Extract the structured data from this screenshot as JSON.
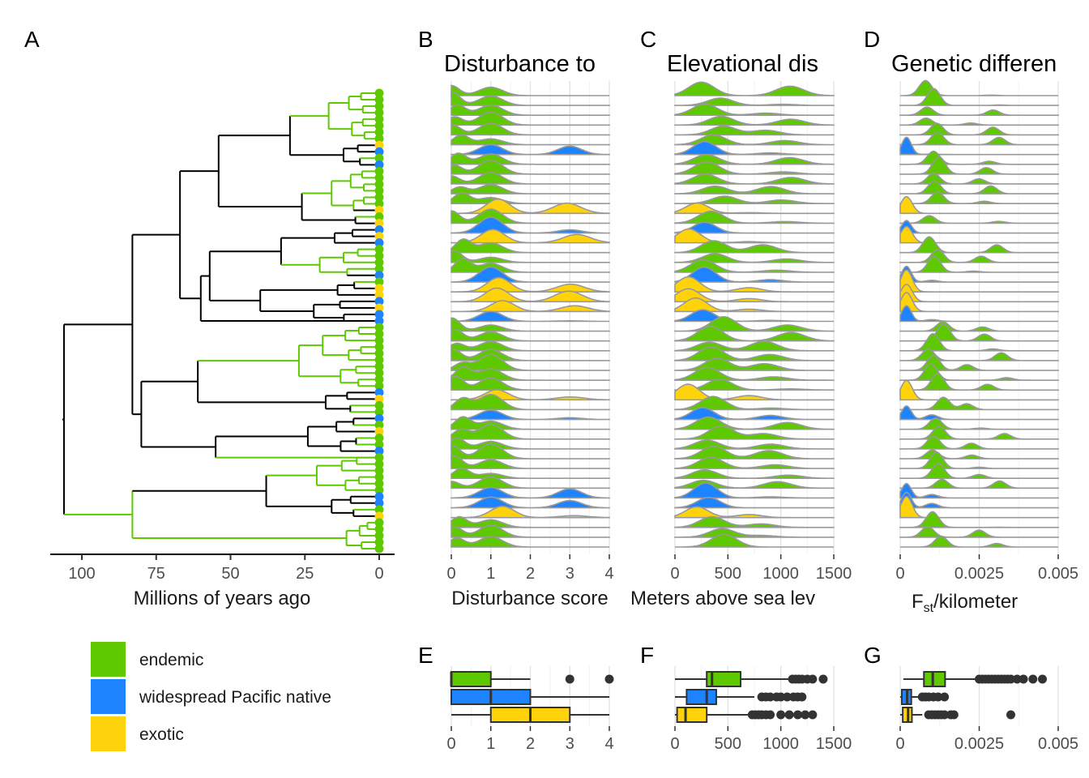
{
  "colors": {
    "endemic": "#5ec900",
    "widespread": "#1e83ff",
    "exotic": "#ffd30b",
    "tree": "#000000",
    "ridge_line": "#999999",
    "grid": "#e6e6e6"
  },
  "legend": {
    "items": [
      {
        "key": "endemic",
        "label": "endemic",
        "color": "#5ec900"
      },
      {
        "key": "widespread",
        "label": "widespread Pacific native",
        "color": "#1e83ff"
      },
      {
        "key": "exotic",
        "label": "exotic",
        "color": "#ffd30b"
      }
    ]
  },
  "panels": {
    "A": {
      "letter": "A",
      "xlabel": "Millions of years ago",
      "ticks": [
        "100",
        "75",
        "50",
        "25",
        "0"
      ]
    },
    "B": {
      "letter": "B",
      "title": "Disturbance to",
      "xlabel": "Disturbance score",
      "ticks": [
        "0",
        "1",
        "2",
        "3",
        "4"
      ]
    },
    "C": {
      "letter": "C",
      "title": "Elevational dis",
      "xlabel": "Meters above sea lev",
      "ticks": [
        "0",
        "500",
        "1000",
        "1500"
      ]
    },
    "D": {
      "letter": "D",
      "title": "Genetic differen",
      "xlabel_main": "F",
      "xlabel_sub": "st",
      "xlabel_rest": "/kilometer",
      "ticks": [
        "0",
        "0.0025",
        "0.005"
      ]
    },
    "E": {
      "letter": "E",
      "ticks": [
        "0",
        "1",
        "2",
        "3",
        "4"
      ]
    },
    "F": {
      "letter": "F",
      "ticks": [
        "0",
        "500",
        "1000",
        "1500"
      ]
    },
    "G": {
      "letter": "G",
      "ticks": [
        "0",
        "0.0025",
        "0.005"
      ]
    }
  },
  "chart_data": [
    {
      "panel": "A",
      "type": "phylogeny",
      "x_axis": {
        "label": "Millions of years ago",
        "reversed": true,
        "range": [
          110,
          -2
        ],
        "ticks": [
          100,
          75,
          50,
          25,
          0
        ]
      },
      "tip_status": [
        "endemic",
        "endemic",
        "endemic",
        "endemic",
        "endemic",
        "endemic",
        "endemic",
        "endemic",
        "exotic",
        "widespread",
        "endemic",
        "widespread",
        "endemic",
        "endemic",
        "endemic",
        "endemic",
        "endemic",
        "endemic",
        "exotic",
        "endemic",
        "exotic",
        "widespread",
        "exotic",
        "widespread",
        "endemic",
        "endemic",
        "endemic",
        "endemic",
        "widespread",
        "endemic",
        "exotic",
        "exotic",
        "widespread",
        "exotic",
        "widespread",
        "widespread",
        "endemic",
        "endemic",
        "endemic",
        "endemic",
        "endemic",
        "endemic",
        "endemic",
        "endemic",
        "endemic",
        "endemic",
        "widespread",
        "exotic",
        "endemic",
        "endemic",
        "widespread",
        "endemic",
        "exotic",
        "endemic",
        "endemic",
        "widespread",
        "endemic",
        "endemic",
        "endemic",
        "endemic",
        "endemic",
        "endemic",
        "widespread",
        "widespread",
        "endemic",
        "exotic",
        "endemic",
        "endemic",
        "endemic",
        "endemic",
        "endemic"
      ]
    },
    {
      "panel": "B",
      "type": "ridgeline",
      "x_axis": {
        "label": "Disturbance score",
        "range": [
          0,
          4
        ],
        "ticks": [
          0,
          1,
          2,
          3,
          4
        ]
      }
    },
    {
      "panel": "C",
      "type": "ridgeline",
      "x_axis": {
        "label": "Meters above sea lev",
        "range": [
          0,
          1500
        ],
        "ticks": [
          0,
          500,
          1000,
          1500
        ]
      }
    },
    {
      "panel": "D",
      "type": "ridgeline",
      "x_axis": {
        "label": "Fst/kilometer",
        "range": [
          0,
          0.005
        ],
        "ticks": [
          0,
          0.0025,
          0.005
        ]
      }
    },
    {
      "panel": "E",
      "type": "boxplot",
      "x_axis": {
        "range": [
          0,
          4
        ],
        "ticks": [
          0,
          1,
          2,
          3,
          4
        ]
      },
      "boxes": [
        {
          "group": "endemic",
          "q1": 0,
          "median": 0,
          "q3": 1,
          "whisker_low": 0,
          "whisker_high": 2,
          "outliers": [
            3,
            4
          ]
        },
        {
          "group": "widespread",
          "q1": 0,
          "median": 1,
          "q3": 2,
          "whisker_low": 0,
          "whisker_high": 4,
          "outliers": []
        },
        {
          "group": "exotic",
          "q1": 1,
          "median": 2,
          "q3": 3,
          "whisker_low": 0,
          "whisker_high": 4,
          "outliers": []
        }
      ]
    },
    {
      "panel": "F",
      "type": "boxplot",
      "x_axis": {
        "range": [
          0,
          1500
        ],
        "ticks": [
          0,
          500,
          1000,
          1500
        ]
      },
      "boxes": [
        {
          "group": "endemic",
          "q1": 300,
          "median": 350,
          "q3": 620,
          "whisker_low": 0,
          "whisker_high": 1080,
          "outliers": [
            1110,
            1140,
            1170,
            1200,
            1250,
            1300,
            1400
          ]
        },
        {
          "group": "widespread",
          "q1": 110,
          "median": 300,
          "q3": 390,
          "whisker_low": 0,
          "whisker_high": 750,
          "outliers": [
            820,
            860,
            900,
            960,
            1000,
            1060,
            1120,
            1160,
            1200
          ]
        },
        {
          "group": "exotic",
          "q1": 20,
          "median": 100,
          "q3": 300,
          "whisker_low": 0,
          "whisker_high": 700,
          "outliers": [
            730,
            760,
            790,
            820,
            860,
            900,
            1000,
            1080,
            1160,
            1230,
            1300
          ]
        }
      ]
    },
    {
      "panel": "G",
      "type": "boxplot",
      "x_axis": {
        "range": [
          0,
          0.005
        ],
        "ticks": [
          0,
          0.0025,
          0.005
        ]
      },
      "boxes": [
        {
          "group": "endemic",
          "q1": 0.00075,
          "median": 0.00103,
          "q3": 0.00142,
          "whisker_low": 0.0001,
          "whisker_high": 0.0024,
          "outliers": [
            0.0025,
            0.0026,
            0.0027,
            0.0028,
            0.0029,
            0.003,
            0.0031,
            0.0032,
            0.0033,
            0.0034,
            0.0035,
            0.0037,
            0.0039,
            0.0042,
            0.0045
          ]
        },
        {
          "group": "widespread",
          "q1": 5e-05,
          "median": 0.00022,
          "q3": 0.00035,
          "whisker_low": 0,
          "whisker_high": 0.0006,
          "outliers": [
            0.0007,
            0.0008,
            0.0009,
            0.00105,
            0.0012,
            0.0014
          ]
        },
        {
          "group": "exotic",
          "q1": 8e-05,
          "median": 0.00025,
          "q3": 0.00037,
          "whisker_low": 0,
          "whisker_high": 0.0007,
          "outliers": [
            0.0009,
            0.001,
            0.0011,
            0.0012,
            0.0013,
            0.0014,
            0.0016,
            0.0017,
            0.0035
          ]
        }
      ]
    }
  ]
}
